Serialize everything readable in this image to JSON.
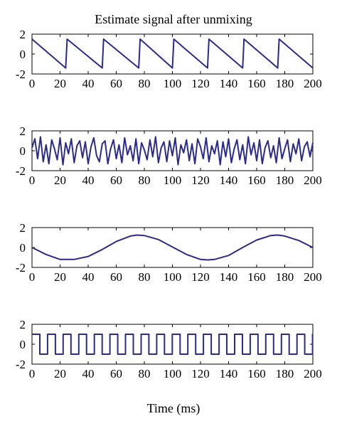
{
  "title": "Estimate signal after unmixing",
  "xlabel": "Time (ms)",
  "colors": {
    "line": "#2b2b8c",
    "axes": "#000000"
  },
  "chart_data": [
    {
      "type": "line",
      "signal": "sawtooth",
      "xlim": [
        0,
        200
      ],
      "ylim": [
        -2,
        2
      ],
      "xticks": [
        0,
        20,
        40,
        60,
        80,
        100,
        120,
        140,
        160,
        180,
        200
      ],
      "yticks": [
        -2,
        0,
        2
      ],
      "x": [
        0,
        24,
        25,
        50,
        51,
        76,
        77,
        100,
        101,
        125,
        126,
        150,
        151,
        175,
        176,
        200
      ],
      "y": [
        1.5,
        -1.4,
        1.5,
        -1.4,
        1.5,
        -1.4,
        1.5,
        -1.4,
        1.5,
        -1.4,
        1.5,
        -1.4,
        1.5,
        -1.4,
        1.5,
        -1.4
      ]
    },
    {
      "type": "line",
      "signal": "noise",
      "xlim": [
        0,
        200
      ],
      "ylim": [
        -2,
        2
      ],
      "xticks": [
        0,
        20,
        40,
        60,
        80,
        100,
        120,
        140,
        160,
        180,
        200
      ],
      "yticks": [
        -2,
        0,
        2
      ],
      "x": [
        0,
        2,
        4,
        6,
        8,
        10,
        12,
        14,
        16,
        18,
        20,
        22,
        24,
        26,
        28,
        30,
        32,
        34,
        36,
        38,
        40,
        42,
        44,
        46,
        48,
        50,
        52,
        54,
        56,
        58,
        60,
        62,
        64,
        66,
        68,
        70,
        72,
        74,
        76,
        78,
        80,
        82,
        84,
        86,
        88,
        90,
        92,
        94,
        96,
        98,
        100,
        102,
        104,
        106,
        108,
        110,
        112,
        114,
        116,
        118,
        120,
        122,
        124,
        126,
        128,
        130,
        132,
        134,
        136,
        138,
        140,
        142,
        144,
        146,
        148,
        150,
        152,
        154,
        156,
        158,
        160,
        162,
        164,
        166,
        168,
        170,
        172,
        174,
        176,
        178,
        180,
        182,
        184,
        186,
        188,
        190,
        192,
        194,
        196,
        198,
        200
      ],
      "y": [
        0.3,
        1.2,
        -0.8,
        1.4,
        -1.1,
        0.6,
        -1.3,
        1.1,
        0.2,
        -0.9,
        1.3,
        -1.4,
        0.8,
        -0.3,
        1.2,
        -1.2,
        0.5,
        1.0,
        -0.7,
        0.9,
        -1.3,
        0.4,
        1.3,
        -0.5,
        -1.1,
        0.7,
        1.0,
        -1.3,
        0.2,
        1.1,
        -0.8,
        0.6,
        -1.2,
        1.3,
        -0.4,
        0.5,
        -1.0,
        1.2,
        -1.3,
        0.8,
        0.1,
        -0.9,
        1.1,
        -0.6,
        1.4,
        -1.2,
        0.3,
        0.9,
        -1.1,
        1.0,
        -0.5,
        1.3,
        -1.4,
        0.6,
        -0.2,
        1.1,
        -1.0,
        0.7,
        -1.3,
        1.2,
        0.4,
        -0.8,
        1.3,
        -1.1,
        0.5,
        -0.3,
        1.0,
        -1.4,
        0.9,
        -0.6,
        1.2,
        -1.2,
        0.2,
        1.1,
        -0.9,
        0.6,
        -1.3,
        1.4,
        -0.4,
        0.8,
        -1.0,
        1.1,
        -1.3,
        0.3,
        1.0,
        -0.7,
        0.5,
        -1.2,
        1.3,
        -0.8,
        0.2,
        1.1,
        -1.1,
        0.7,
        -0.3,
        1.2,
        -1.0,
        0.4,
        0.9,
        -0.6,
        0.8
      ]
    },
    {
      "type": "line",
      "signal": "sine",
      "xlim": [
        0,
        200
      ],
      "ylim": [
        -2,
        2
      ],
      "xticks": [
        0,
        20,
        40,
        60,
        80,
        100,
        120,
        140,
        160,
        180,
        200
      ],
      "yticks": [
        -2,
        0,
        2
      ],
      "x": [
        0,
        10,
        20,
        30,
        40,
        50,
        60,
        70,
        75,
        80,
        90,
        100,
        110,
        120,
        125,
        130,
        140,
        150,
        160,
        170,
        175,
        180,
        190,
        200
      ],
      "y": [
        0.0,
        -0.7,
        -1.2,
        -1.2,
        -0.9,
        -0.2,
        0.6,
        1.15,
        1.25,
        1.2,
        0.8,
        0.05,
        -0.7,
        -1.2,
        -1.25,
        -1.2,
        -0.8,
        0.0,
        0.75,
        1.2,
        1.25,
        1.15,
        0.7,
        0.0
      ]
    },
    {
      "type": "line",
      "signal": "square",
      "xlim": [
        0,
        200
      ],
      "ylim": [
        -2,
        2
      ],
      "xticks": [
        0,
        20,
        40,
        60,
        80,
        100,
        120,
        140,
        160,
        180,
        200
      ],
      "yticks": [
        -2,
        0,
        2
      ],
      "period": 11.1,
      "high": 1.0,
      "low": -1.0,
      "start_level": "high"
    }
  ]
}
